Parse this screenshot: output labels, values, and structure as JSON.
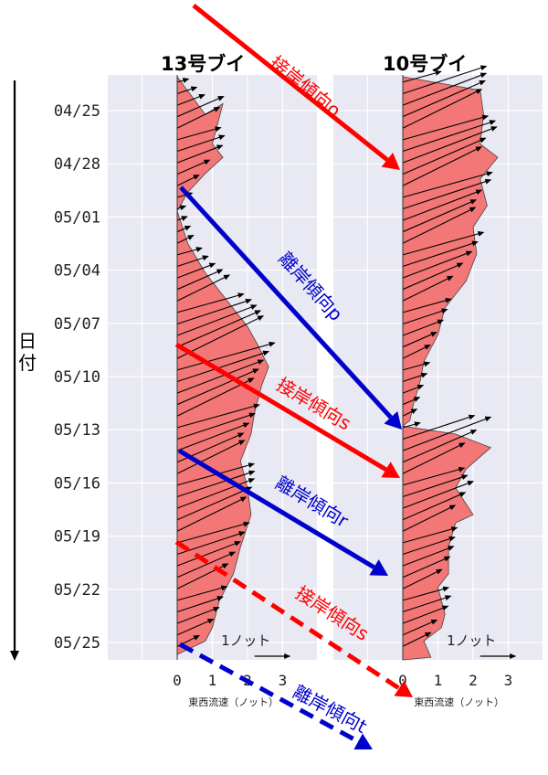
{
  "chart_data": {
    "type": "quiver",
    "y_tick_labels": [
      "04/25",
      "04/28",
      "05/01",
      "05/04",
      "05/07",
      "05/10",
      "05/13",
      "05/16",
      "05/19",
      "05/22",
      "05/25"
    ],
    "xlim": [
      -2,
      4
    ],
    "x_ticks": [
      0,
      1,
      2,
      3
    ],
    "ylabel_chars": [
      "日",
      "付"
    ],
    "panels": [
      {
        "title": "13号ブイ",
        "xlabel": "東西流速（ノット）",
        "scale_label": "1ノット",
        "east_speed_profile": [
          [
            0,
            2.0
          ],
          [
            0.8,
            3.4
          ],
          [
            1.3,
            3.0
          ],
          [
            1.0,
            4.5
          ],
          [
            1.3,
            5.0
          ],
          [
            0.8,
            5.6
          ],
          [
            0.3,
            6.3
          ],
          [
            0,
            7.0
          ],
          [
            0.3,
            8.2
          ],
          [
            0.8,
            9.3
          ],
          [
            1.4,
            10.3
          ],
          [
            2.0,
            11.3
          ],
          [
            2.3,
            12.0
          ],
          [
            2.6,
            12.8
          ],
          [
            2.4,
            13.5
          ],
          [
            2.2,
            14.5
          ],
          [
            2.1,
            15.3
          ],
          [
            1.8,
            16.3
          ],
          [
            2.0,
            17.3
          ],
          [
            2.1,
            18.3
          ],
          [
            1.8,
            19.5
          ],
          [
            1.6,
            20.5
          ],
          [
            1.2,
            21.5
          ],
          [
            1.0,
            22.5
          ],
          [
            0.8,
            23.0
          ],
          [
            0,
            23.5
          ]
        ]
      },
      {
        "title": "10号ブイ",
        "xlabel": "東西流速（ノット）",
        "scale_label": "1ノット",
        "east_speed_profile": [
          [
            0,
            2.0
          ],
          [
            2.2,
            2.5
          ],
          [
            2.3,
            3.4
          ],
          [
            2.2,
            4.5
          ],
          [
            2.7,
            5.0
          ],
          [
            2.2,
            5.8
          ],
          [
            2.4,
            6.8
          ],
          [
            2.0,
            7.6
          ],
          [
            2.1,
            8.6
          ],
          [
            1.8,
            9.6
          ],
          [
            1.2,
            10.6
          ],
          [
            1.0,
            11.6
          ],
          [
            0.6,
            12.6
          ],
          [
            0.5,
            13.3
          ],
          [
            0.3,
            14.2
          ],
          [
            0.2,
            14.8
          ],
          [
            0,
            15.0
          ],
          [
            1.5,
            15.3
          ],
          [
            2.5,
            15.8
          ],
          [
            1.8,
            16.6
          ],
          [
            1.5,
            17.3
          ],
          [
            2.0,
            18.3
          ],
          [
            1.5,
            18.6
          ],
          [
            1.3,
            19.5
          ],
          [
            1.3,
            20.5
          ],
          [
            1.0,
            21.0
          ],
          [
            1.2,
            22.0
          ],
          [
            1.1,
            22.5
          ],
          [
            0.6,
            23.0
          ],
          [
            0.8,
            23.6
          ],
          [
            0,
            23.7
          ]
        ]
      }
    ],
    "annotations": [
      {
        "label": "接岸傾向o",
        "color": "#ff0000",
        "style": "solid"
      },
      {
        "label": "離岸傾向p",
        "color": "#0000cc",
        "style": "solid"
      },
      {
        "label": "接岸傾向s",
        "color": "#ff0000",
        "style": "solid"
      },
      {
        "label": "離岸傾向r",
        "color": "#0000cc",
        "style": "solid"
      },
      {
        "label": "接岸傾向s",
        "color": "#ff0000",
        "style": "dashed"
      },
      {
        "label": "離岸傾向t",
        "color": "#0000cc",
        "style": "dashed"
      }
    ],
    "colors": {
      "fill": "#f47777",
      "plot_bg": "#e8e9f2",
      "grid": "#ffffff",
      "red": "#ff0000",
      "blue": "#0000cc"
    }
  }
}
